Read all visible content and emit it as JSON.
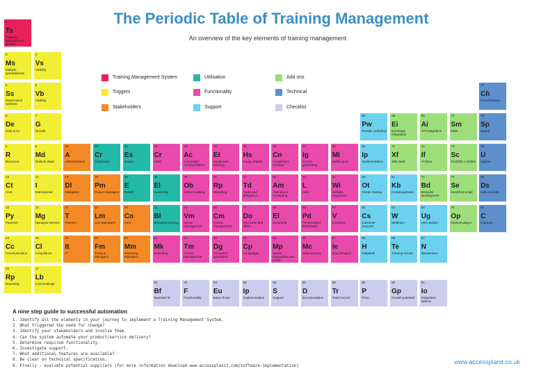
{
  "title": "The Periodic Table of Training Management",
  "subtitle": "An overview of the key elements of training management",
  "colors": {
    "tms": "#e8205c",
    "trigger": "#f2ee33",
    "stakeholder": "#f48a25",
    "utilisation": "#23b9a8",
    "functionality": "#e849ab",
    "support": "#6cd1ee",
    "addons": "#9dde7a",
    "technical": "#5c8fcc",
    "checklist": "#ccccee"
  },
  "legend": [
    {
      "cat": "tms",
      "label": "Training Management System",
      "col": 0,
      "row": 0
    },
    {
      "cat": "trigger",
      "label": "Triggers",
      "col": 0,
      "row": 1
    },
    {
      "cat": "stakeholder",
      "label": "Stakeholders",
      "col": 0,
      "row": 2
    },
    {
      "cat": "utilisation",
      "label": "Utilisation",
      "col": 1,
      "row": 0
    },
    {
      "cat": "functionality",
      "label": "Functionality",
      "col": 1,
      "row": 1
    },
    {
      "cat": "support",
      "label": "Support",
      "col": 1,
      "row": 2
    },
    {
      "cat": "addons",
      "label": "Add ons",
      "col": 2,
      "row": 0
    },
    {
      "cat": "technical",
      "label": "Technical",
      "col": 2,
      "row": 1
    },
    {
      "cat": "checklist",
      "label": "Checklist",
      "col": 2,
      "row": 2
    }
  ],
  "elements": [
    {
      "n": "1",
      "s": "Ts",
      "name": "Training Management System",
      "cat": "tms",
      "c": 0,
      "r": 0
    },
    {
      "n": "2",
      "s": "Ms",
      "name": "Multiple spreadsheets",
      "cat": "trigger",
      "c": 0,
      "r": 1
    },
    {
      "n": "3",
      "s": "Vs",
      "name": "Visibility",
      "cat": "trigger",
      "c": 1,
      "r": 1
    },
    {
      "n": "4",
      "s": "Ss",
      "name": "Stand-alone systems",
      "cat": "trigger",
      "c": 0,
      "r": 2
    },
    {
      "n": "5",
      "s": "Vb",
      "name": "Visibility",
      "cat": "trigger",
      "c": 1,
      "r": 2
    },
    {
      "n": "6",
      "s": "De",
      "name": "Data error",
      "cat": "trigger",
      "c": 0,
      "r": 3
    },
    {
      "n": "7",
      "s": "G",
      "name": "Growth",
      "cat": "trigger",
      "c": 1,
      "r": 3
    },
    {
      "n": "8",
      "s": "R",
      "name": "Resource",
      "cat": "trigger",
      "c": 0,
      "r": 4
    },
    {
      "n": "9",
      "s": "Md",
      "name": "Multiple dates",
      "cat": "trigger",
      "c": 1,
      "r": 4
    },
    {
      "n": "10",
      "s": "Ct",
      "name": "Cost",
      "cat": "trigger",
      "c": 0,
      "r": 5
    },
    {
      "n": "11",
      "s": "I",
      "name": "International",
      "cat": "trigger",
      "c": 1,
      "r": 5
    },
    {
      "n": "12",
      "s": "Py",
      "name": "Payment",
      "cat": "trigger",
      "c": 0,
      "r": 6
    },
    {
      "n": "13",
      "s": "Mg",
      "name": "Managed Service",
      "cat": "trigger",
      "c": 1,
      "r": 6
    },
    {
      "n": "14",
      "s": "Cc",
      "name": "Communication",
      "cat": "trigger",
      "c": 0,
      "r": 7
    },
    {
      "n": "15",
      "s": "Cl",
      "name": "Compliance",
      "cat": "trigger",
      "c": 1,
      "r": 7
    },
    {
      "n": "16",
      "s": "Rp",
      "name": "Reporting",
      "cat": "trigger",
      "c": 0,
      "r": 8
    },
    {
      "n": "17",
      "s": "Lb",
      "name": "Lost bookings",
      "cat": "trigger",
      "c": 1,
      "r": 8
    },
    {
      "n": "18",
      "s": "A",
      "name": "Administrators",
      "cat": "stakeholder",
      "c": 2,
      "r": 4
    },
    {
      "n": "19",
      "s": "Dl",
      "name": "Delegates",
      "cat": "stakeholder",
      "c": 2,
      "r": 5
    },
    {
      "n": "21",
      "s": "T",
      "name": "Trainers",
      "cat": "stakeholder",
      "c": 2,
      "r": 6
    },
    {
      "n": "24",
      "s": "It",
      "name": "IT",
      "cat": "stakeholder",
      "c": 2,
      "r": 7
    },
    {
      "n": "27",
      "s": "Cr",
      "name": "Classroom",
      "cat": "utilisation",
      "c": 3,
      "r": 4
    },
    {
      "n": "28",
      "s": "Ex",
      "name": "Exams",
      "cat": "utilisation",
      "c": 4,
      "r": 4
    },
    {
      "n": "20",
      "s": "Pm",
      "name": "Project Managers",
      "cat": "stakeholder",
      "c": 3,
      "r": 5
    },
    {
      "n": "29",
      "s": "E",
      "name": "Events",
      "cat": "utilisation",
      "c": 4,
      "r": 5
    },
    {
      "n": "22",
      "s": "Lm",
      "name": "Line Managers",
      "cat": "stakeholder",
      "c": 3,
      "r": 6
    },
    {
      "n": "23",
      "s": "Co",
      "name": "CEO",
      "cat": "stakeholder",
      "c": 4,
      "r": 6
    },
    {
      "n": "25",
      "s": "Fm",
      "name": "Finance Managers",
      "cat": "stakeholder",
      "c": 3,
      "r": 7
    },
    {
      "n": "26",
      "s": "Mm",
      "name": "Marketing Managers",
      "cat": "stakeholder",
      "c": 4,
      "r": 7
    },
    {
      "n": "32",
      "s": "Cr",
      "name": "CRM",
      "cat": "functionality",
      "c": 5,
      "r": 4
    },
    {
      "n": "30",
      "s": "El",
      "name": "eLearning",
      "cat": "utilisation",
      "c": 5,
      "r": 5
    },
    {
      "n": "31",
      "s": "Bl",
      "name": "Blended Learning",
      "cat": "utilisation",
      "c": 5,
      "r": 6
    },
    {
      "n": "51",
      "s": "Mk",
      "name": "Marketing",
      "cat": "functionality",
      "c": 5,
      "r": 7
    },
    {
      "n": "33",
      "s": "Ac",
      "name": "Automated communication",
      "cat": "functionality",
      "c": 6,
      "r": 4
    },
    {
      "n": "34",
      "s": "Et",
      "name": "Equipment tracking",
      "cat": "functionality",
      "c": 7,
      "r": 4
    },
    {
      "n": "35",
      "s": "Hs",
      "name": "Happy sheets",
      "cat": "functionality",
      "c": 8,
      "r": 4
    },
    {
      "n": "36",
      "s": "Cn",
      "name": "Compliance tracking",
      "cat": "functionality",
      "c": 9,
      "r": 4
    },
    {
      "n": "37",
      "s": "Ig",
      "name": "Invoice generating",
      "cat": "functionality",
      "c": 10,
      "r": 4
    },
    {
      "n": "38",
      "s": "Ml",
      "name": "Multilingual",
      "cat": "functionality",
      "c": 11,
      "r": 4
    },
    {
      "n": "39",
      "s": "Ob",
      "name": "Online booking",
      "cat": "functionality",
      "c": 6,
      "r": 5
    },
    {
      "n": "40",
      "s": "Rp",
      "name": "Reporting",
      "cat": "functionality",
      "c": 7,
      "r": 5
    },
    {
      "n": "41",
      "s": "Td",
      "name": "Tasks and delegation",
      "cat": "functionality",
      "c": 8,
      "r": 5
    },
    {
      "n": "42",
      "s": "Am",
      "name": "Attendance monitoring",
      "cat": "functionality",
      "c": 9,
      "r": 5
    },
    {
      "n": "43",
      "s": "L",
      "name": "LMS",
      "cat": "functionality",
      "c": 10,
      "r": 5
    },
    {
      "n": "44",
      "s": "Wi",
      "name": "Website integration",
      "cat": "functionality",
      "c": 11,
      "r": 5
    },
    {
      "n": "45",
      "s": "Vm",
      "name": "Venue management",
      "cat": "functionality",
      "c": 6,
      "r": 6
    },
    {
      "n": "46",
      "s": "Cm",
      "name": "Course management",
      "cat": "functionality",
      "c": 7,
      "r": 6
    },
    {
      "n": "47",
      "s": "Do",
      "name": "Discounts and offers",
      "cat": "functionality",
      "c": 8,
      "r": 6
    },
    {
      "n": "48",
      "s": "El",
      "name": "eLearning",
      "cat": "functionality",
      "c": 9,
      "r": 6
    },
    {
      "n": "49",
      "s": "Pd",
      "name": "Personalised dashboard",
      "cat": "functionality",
      "c": 10,
      "r": 6
    },
    {
      "n": "50",
      "s": "V",
      "name": "Vouchers",
      "cat": "functionality",
      "c": 11,
      "r": 6
    },
    {
      "n": "52",
      "s": "Tm",
      "name": "Trainer management",
      "cat": "functionality",
      "c": 6,
      "r": 7
    },
    {
      "n": "53",
      "s": "Dg",
      "name": "Document generation",
      "cat": "functionality",
      "c": 7,
      "r": 7
    },
    {
      "n": "54",
      "s": "Cp",
      "name": "Campaigns",
      "cat": "functionality",
      "c": 8,
      "r": 7
    },
    {
      "n": "55",
      "s": "Mp",
      "name": "Mobile responsive user portal",
      "cat": "functionality",
      "c": 9,
      "r": 7
    },
    {
      "n": "56",
      "s": "Mc",
      "name": "Multicurrency",
      "cat": "functionality",
      "c": 10,
      "r": 7
    },
    {
      "n": "57",
      "s": "Ie",
      "name": "Import/Export",
      "cat": "functionality",
      "c": 11,
      "r": 7
    },
    {
      "n": "58",
      "s": "Pw",
      "name": "Presale workshop",
      "cat": "support",
      "c": 12,
      "r": 3
    },
    {
      "n": "59",
      "s": "Ip",
      "name": "Implementation",
      "cat": "support",
      "c": 12,
      "r": 4
    },
    {
      "n": "60",
      "s": "Ot",
      "name": "Onsite training",
      "cat": "support",
      "c": 12,
      "r": 5
    },
    {
      "n": "62",
      "s": "Cs",
      "name": "Customer Success",
      "cat": "support",
      "c": 12,
      "r": 6
    },
    {
      "n": "65",
      "s": "H",
      "name": "Helpdesk",
      "cat": "support",
      "c": 12,
      "r": 7
    },
    {
      "n": "68",
      "s": "Ei",
      "name": "Exchange integration",
      "cat": "addons",
      "c": 13,
      "r": 3
    },
    {
      "n": "71",
      "s": "Xf",
      "name": "XML feed",
      "cat": "addons",
      "c": 13,
      "r": 4
    },
    {
      "n": "61",
      "s": "Kb",
      "name": "Knowledgebase",
      "cat": "support",
      "c": 13,
      "r": 5
    },
    {
      "n": "63",
      "s": "W",
      "name": "Webinars",
      "cat": "support",
      "c": 13,
      "r": 6
    },
    {
      "n": "66",
      "s": "Te",
      "name": "Training events",
      "cat": "support",
      "c": 13,
      "r": 7
    },
    {
      "n": "69",
      "s": "Ai",
      "name": "API integration",
      "cat": "addons",
      "c": 14,
      "r": 3
    },
    {
      "n": "72",
      "s": "If",
      "name": "i-Frame",
      "cat": "addons",
      "c": 14,
      "r": 4
    },
    {
      "n": "74",
      "s": "Bd",
      "name": "Bespoke development",
      "cat": "addons",
      "c": 14,
      "r": 5
    },
    {
      "n": "64",
      "s": "Ug",
      "name": "User guides",
      "cat": "support",
      "c": 14,
      "r": 6
    },
    {
      "n": "67",
      "s": "N",
      "name": "Newsletters",
      "cat": "support",
      "c": 14,
      "r": 7
    },
    {
      "n": "70",
      "s": "Sm",
      "name": "SMS",
      "cat": "addons",
      "c": 15,
      "r": 3
    },
    {
      "n": "73",
      "s": "Sc",
      "name": "SCORM 1.2/2004",
      "cat": "addons",
      "c": 15,
      "r": 4
    },
    {
      "n": "75",
      "s": "Se",
      "name": "SendGrid email",
      "cat": "addons",
      "c": 15,
      "r": 5
    },
    {
      "n": "76",
      "s": "Op",
      "name": "Outlook plug-in",
      "cat": "addons",
      "c": 15,
      "r": 6
    },
    {
      "n": "77",
      "s": "Ch",
      "name": "Cloud hosting",
      "cat": "technical",
      "c": 16,
      "r": 2
    },
    {
      "n": "78",
      "s": "Sp",
      "name": "Speed",
      "cat": "technical",
      "c": 16,
      "r": 3
    },
    {
      "n": "79",
      "s": "U",
      "name": "Uptime",
      "cat": "technical",
      "c": 16,
      "r": 4
    },
    {
      "n": "80",
      "s": "Ds",
      "name": "Data security",
      "cat": "technical",
      "c": 16,
      "r": 5
    },
    {
      "n": "81",
      "s": "C",
      "name": "Capacity",
      "cat": "technical",
      "c": 16,
      "r": 6
    },
    {
      "n": "82",
      "s": "Bf",
      "name": "Business fit",
      "cat": "checklist",
      "c": 5,
      "r": 9
    },
    {
      "n": "83",
      "s": "F",
      "name": "Functionality",
      "cat": "checklist",
      "c": 6,
      "r": 9
    },
    {
      "n": "84",
      "s": "Eu",
      "name": "Ease of use",
      "cat": "checklist",
      "c": 7,
      "r": 9
    },
    {
      "n": "85",
      "s": "Ip",
      "name": "Implementation",
      "cat": "checklist",
      "c": 8,
      "r": 9
    },
    {
      "n": "86",
      "s": "S",
      "name": "Support",
      "cat": "checklist",
      "c": 9,
      "r": 9
    },
    {
      "n": "87",
      "s": "D",
      "name": "Documentation",
      "cat": "checklist",
      "c": 10,
      "r": 9
    },
    {
      "n": "88",
      "s": "Tr",
      "name": "Track record",
      "cat": "checklist",
      "c": 11,
      "r": 9
    },
    {
      "n": "89",
      "s": "P",
      "name": "Price",
      "cat": "checklist",
      "c": 12,
      "r": 9
    },
    {
      "n": "90",
      "s": "Gp",
      "name": "Growth potential",
      "cat": "checklist",
      "c": 13,
      "r": 9
    },
    {
      "n": "91",
      "s": "Io",
      "name": "Integration options",
      "cat": "checklist",
      "c": 14,
      "r": 9
    }
  ],
  "guide": {
    "title": "A nine step guide to successful automation",
    "steps": [
      "1. Identify all the elements in your journey to implement a Training Management System.",
      "2. What triggered the need for change?",
      "3. Identify your stakeholders and involve them.",
      "4. Can the system automate your product/service delivery?",
      "5. Determine required functionality.",
      "6. Investigate support.",
      "7. What additional features are available?",
      "8. Be clear on technical specification.",
      "9. Finally - evaluate potential suppliers (for more information download www.accessplanit.com/software-implementation)"
    ]
  },
  "website": "www.accessplanit.co.uk"
}
